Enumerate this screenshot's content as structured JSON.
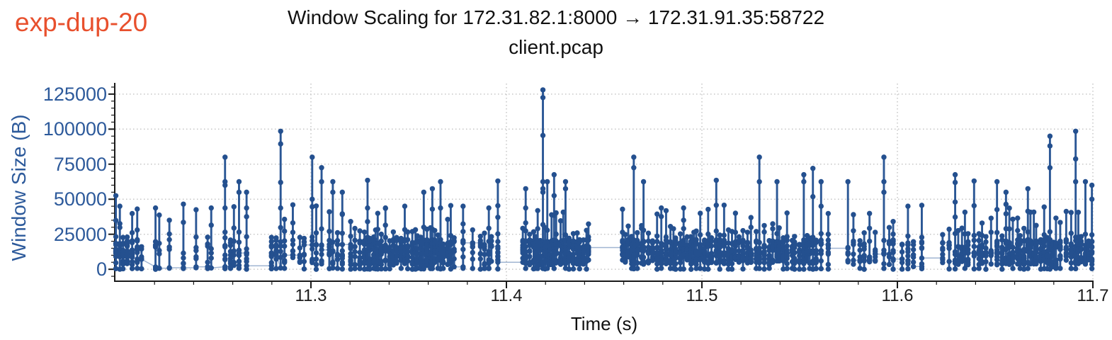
{
  "annotation": {
    "text": "exp-dup-20",
    "color": "#e8502d"
  },
  "header": {
    "title": "Window Scaling for 172.31.82.1:8000 → 172.31.91.35:58722",
    "subtitle": "client.pcap"
  },
  "chart_data": {
    "type": "scatter",
    "title": "Window Scaling for 172.31.82.1:8000 → 172.31.91.35:58722",
    "subtitle": "client.pcap",
    "xlabel": "Time (s)",
    "ylabel": "Window Size (B)",
    "xlim": [
      11.2,
      11.7
    ],
    "ylim": [
      -8000,
      132500
    ],
    "x_ticks": [
      "11.3",
      "11.4",
      "11.5",
      "11.6",
      "11.7"
    ],
    "x_tick_values": [
      11.3,
      11.4,
      11.5,
      11.6,
      11.7
    ],
    "y_ticks": [
      "0",
      "25000",
      "50000",
      "75000",
      "100000",
      "125000"
    ],
    "y_tick_values": [
      0,
      25000,
      50000,
      75000,
      100000,
      125000
    ],
    "x_minor_step": 0.02,
    "y_minor_step": 5000,
    "grid": {
      "style": "dotted",
      "color": "#c6c6c6"
    },
    "colors": {
      "marker": "#24508f",
      "stem": "#2b5795",
      "connector": "#2d5a9b",
      "y_text": "#2d5a9b",
      "x_text": "#1a1a1a",
      "axis": "#1a1a1a"
    },
    "base_band": [
      3200,
      21200
    ],
    "seed": 11,
    "gaps": [
      [
        11.2692,
        11.278,
        2500
      ],
      [
        11.396,
        11.4058,
        5000
      ],
      [
        11.4425,
        11.4585,
        15500
      ],
      [
        11.5662,
        11.574,
        15000
      ],
      [
        11.614,
        11.6222,
        8000
      ]
    ],
    "density_zones": [
      {
        "range": [
          11.2,
          11.212
        ],
        "spacing": [
          0.001,
          0.0028
        ],
        "dense": true
      },
      {
        "range": [
          11.212,
          11.252
        ],
        "spacing": [
          0.0048,
          0.0105
        ],
        "level": 900,
        "sparse": true
      },
      {
        "range": [
          11.252,
          11.27
        ],
        "spacing": [
          0.0015,
          0.004
        ]
      },
      {
        "range": [
          11.325,
          11.373
        ],
        "spacing": [
          0.0009,
          0.0024
        ],
        "dense": true
      },
      {
        "range": [
          11.406,
          11.4425
        ],
        "spacing": [
          0.0009,
          0.0024
        ],
        "dense": true
      },
      {
        "range": [
          11.4585,
          11.505
        ],
        "spacing": [
          0.001,
          0.0026
        ],
        "dense": true
      },
      {
        "range": [
          11.505,
          11.56
        ],
        "spacing": [
          0.0011,
          0.0028
        ],
        "dense": true
      },
      {
        "range": [
          11.574,
          11.614
        ],
        "spacing": [
          0.002,
          0.0048
        ]
      },
      {
        "range": [
          11.622,
          11.648
        ],
        "spacing": [
          0.0014,
          0.0034
        ]
      },
      {
        "range": [
          11.648,
          11.672
        ],
        "spacing": [
          0.001,
          0.0026
        ],
        "dense": true
      },
      {
        "range": [
          11.672,
          11.7
        ],
        "spacing": [
          0.0013,
          0.0032
        ],
        "dense": true
      }
    ],
    "default_spacing": [
      0.002,
      0.005
    ],
    "spikes": [
      [
        11.2005,
        [
          52500,
          17500
        ]
      ],
      [
        11.2025,
        [
          45000
        ]
      ],
      [
        11.211,
        [
          43000
        ]
      ],
      [
        11.2205,
        [
          43750
        ]
      ],
      [
        11.2275,
        [
          35000
        ]
      ],
      [
        11.2355,
        [
          46500
        ]
      ],
      [
        11.2425,
        [
          42500
        ]
      ],
      [
        11.249,
        [
          43750
        ]
      ],
      [
        11.255,
        [
          80000,
          60000,
          22500
        ]
      ],
      [
        11.2572,
        [
          62500,
          43750
        ]
      ],
      [
        11.2625,
        [
          62500,
          55000
        ]
      ],
      [
        11.2682,
        [
          55000,
          43750
        ]
      ],
      [
        11.2845,
        [
          98500,
          89500,
          62000,
          43750
        ]
      ],
      [
        11.2895,
        [
          46000
        ]
      ],
      [
        11.3005,
        [
          80000,
          50000
        ]
      ],
      [
        11.306,
        [
          72500,
          62500
        ]
      ],
      [
        11.3112,
        [
          62500,
          55000
        ]
      ],
      [
        11.315,
        [
          55000
        ]
      ],
      [
        11.3295,
        [
          63500,
          43750
        ]
      ],
      [
        11.3385,
        [
          43750
        ]
      ],
      [
        11.3475,
        [
          45000
        ]
      ],
      [
        11.3585,
        [
          55000
        ]
      ],
      [
        11.3625,
        [
          57500
        ]
      ],
      [
        11.3675,
        [
          62500,
          43750
        ]
      ],
      [
        11.3775,
        [
          45000
        ]
      ],
      [
        11.391,
        [
          43750
        ]
      ],
      [
        11.395,
        [
          63000
        ]
      ],
      [
        11.411,
        [
          57500,
          43750
        ]
      ],
      [
        11.419,
        [
          128000,
          122500,
          95500,
          62500,
          57500,
          55000
        ]
      ],
      [
        11.422,
        [
          62500
        ]
      ],
      [
        11.4245,
        [
          67500,
          52500
        ]
      ],
      [
        11.4305,
        [
          62500,
          57500
        ]
      ],
      [
        11.466,
        [
          80000,
          72500
        ]
      ],
      [
        11.4705,
        [
          62500
        ]
      ],
      [
        11.4795,
        [
          43750
        ]
      ],
      [
        11.4905,
        [
          43750,
          35000
        ]
      ],
      [
        11.507,
        [
          63500
        ]
      ],
      [
        11.5295,
        [
          80000,
          62500
        ]
      ],
      [
        11.5395,
        [
          62500
        ]
      ],
      [
        11.553,
        [
          67500,
          62500
        ]
      ],
      [
        11.5565,
        [
          72000
        ]
      ],
      [
        11.562,
        [
          62500
        ]
      ],
      [
        11.5755,
        [
          62500
        ]
      ],
      [
        11.593,
        [
          80000,
          62500,
          55000
        ]
      ],
      [
        11.606,
        [
          45000
        ]
      ],
      [
        11.6295,
        [
          67500,
          62000,
          48000
        ]
      ],
      [
        11.64,
        [
          63000
        ]
      ],
      [
        11.65,
        [
          62500
        ]
      ],
      [
        11.656,
        [
          55000
        ]
      ],
      [
        11.668,
        [
          57500
        ]
      ],
      [
        11.679,
        [
          95000,
          88000,
          72500
        ]
      ],
      [
        11.692,
        [
          98500,
          78750,
          62500
        ]
      ],
      [
        11.6965,
        [
          62500
        ]
      ],
      [
        11.6995,
        [
          60000,
          50000
        ]
      ]
    ],
    "note": "Stem-like scatter of TCP receive window size vs time. 'spikes' are peak stem values read from the figure; dense low-value cluster dots (3.2k-21.2k B band with dots at 0) are procedurally filled to match the visual density."
  }
}
